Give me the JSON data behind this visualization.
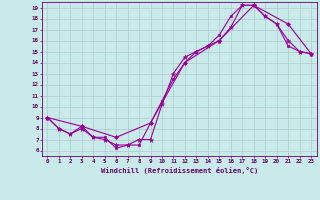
{
  "xlabel": "Windchill (Refroidissement éolien,°C)",
  "bg_color": "#c8eaea",
  "line_color": "#990099",
  "grid_color": "#b0c8c8",
  "xlim": [
    -0.5,
    23.5
  ],
  "ylim": [
    5.5,
    19.5
  ],
  "xticks": [
    0,
    1,
    2,
    3,
    4,
    5,
    6,
    7,
    8,
    9,
    10,
    11,
    12,
    13,
    14,
    15,
    16,
    17,
    18,
    19,
    20,
    21,
    22,
    23
  ],
  "yticks": [
    6,
    7,
    8,
    9,
    10,
    11,
    12,
    13,
    14,
    15,
    16,
    17,
    18,
    19
  ],
  "line1_x": [
    0,
    1,
    2,
    3,
    4,
    5,
    6,
    7,
    8,
    9,
    10,
    11,
    12,
    13,
    14,
    15,
    16,
    17,
    18,
    19,
    20,
    21,
    22,
    23
  ],
  "line1_y": [
    9,
    8,
    7.5,
    8.2,
    7.2,
    7.2,
    6.2,
    6.5,
    6.5,
    8.5,
    10.5,
    12.5,
    14.0,
    15.0,
    15.5,
    16.5,
    18.2,
    19.2,
    19.2,
    18.2,
    17.5,
    15.5,
    15.0,
    14.8
  ],
  "line2_x": [
    0,
    1,
    2,
    3,
    4,
    5,
    6,
    7,
    8,
    9,
    10,
    11,
    12,
    13,
    14,
    15,
    16,
    17,
    18,
    19,
    20,
    21,
    22,
    23
  ],
  "line2_y": [
    9,
    8,
    7.5,
    8.0,
    7.2,
    7.0,
    6.5,
    6.5,
    7.0,
    7.0,
    10.2,
    13.0,
    14.5,
    15.0,
    15.5,
    16.0,
    17.2,
    19.2,
    19.2,
    18.2,
    17.5,
    16.0,
    15.0,
    14.8
  ],
  "line3_x": [
    0,
    3,
    6,
    9,
    12,
    15,
    18,
    21,
    23
  ],
  "line3_y": [
    9,
    8.2,
    7.2,
    8.5,
    14.0,
    16.0,
    19.2,
    17.5,
    14.8
  ]
}
